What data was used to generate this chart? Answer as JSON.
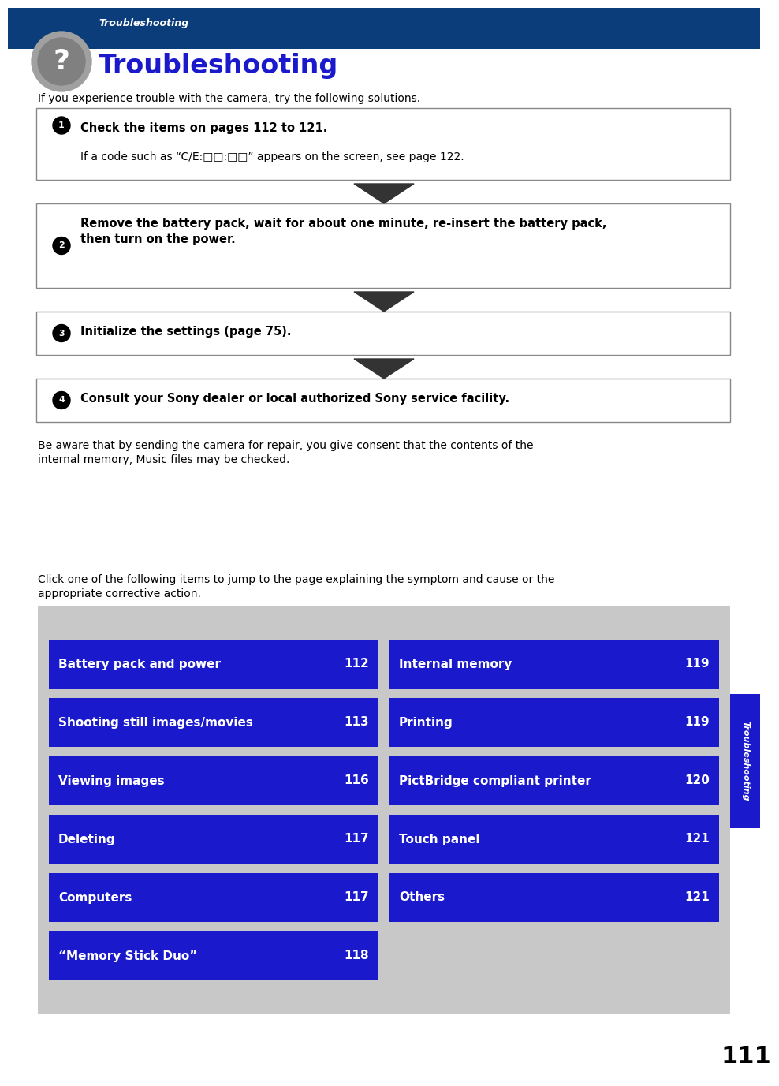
{
  "bg_color": "#ffffff",
  "header_bg": "#0a3d7a",
  "header_italic_text": "Troubleshooting",
  "header_bold_text": "Troubleshooting",
  "header_bold_color": "#1a1acc",
  "intro_text": "If you experience trouble with the camera, try the following solutions.",
  "steps": [
    {
      "num": 1,
      "bold_text": "Check the items on pages 112 to 121.",
      "sub_text": "If a code such as “C/E:□□:□□” appears on the screen, see page 122.",
      "has_arrow": true,
      "two_line_bold": false
    },
    {
      "num": 2,
      "bold_text": "Remove the battery pack, wait for about one minute, re-insert the battery pack,\nthen turn on the power.",
      "sub_text": "",
      "has_arrow": true,
      "two_line_bold": true
    },
    {
      "num": 3,
      "bold_text": "Initialize the settings (page 75).",
      "sub_text": "",
      "has_arrow": true,
      "two_line_bold": false
    },
    {
      "num": 4,
      "bold_text": "Consult your Sony dealer or local authorized Sony service facility.",
      "sub_text": "",
      "has_arrow": false,
      "two_line_bold": false
    }
  ],
  "footer_line1": "Be aware that by sending the camera for repair, you give consent that the contents of the",
  "footer_line2": "internal memory, Music files may be checked.",
  "click_line1": "Click one of the following items to jump to the page explaining the symptom and cause or the",
  "click_line2": "appropriate corrective action.",
  "table_bg": "#c8c8c8",
  "cell_bg": "#1a1acc",
  "cell_text_color": "#ffffff",
  "left_items": [
    {
      "label": "Battery pack and power",
      "page": "112"
    },
    {
      "label": "Shooting still images/movies",
      "page": "113"
    },
    {
      "label": "Viewing images",
      "page": "116"
    },
    {
      "label": "Deleting",
      "page": "117"
    },
    {
      "label": "Computers",
      "page": "117"
    },
    {
      "label": "“Memory Stick Duo”",
      "page": "118"
    }
  ],
  "right_items": [
    {
      "label": "Internal memory",
      "page": "119"
    },
    {
      "label": "Printing",
      "page": "119"
    },
    {
      "label": "PictBridge compliant printer",
      "page": "120"
    },
    {
      "label": "Touch panel",
      "page": "121"
    },
    {
      "label": "Others",
      "page": "121"
    },
    {
      "label": "",
      "page": ""
    }
  ],
  "side_tab_text": "Troubleshooting",
  "side_tab_color": "#1a1acc",
  "page_number": "111",
  "arrow_color": "#333333",
  "step_border_color": "#888888",
  "circle_color": "#000000"
}
